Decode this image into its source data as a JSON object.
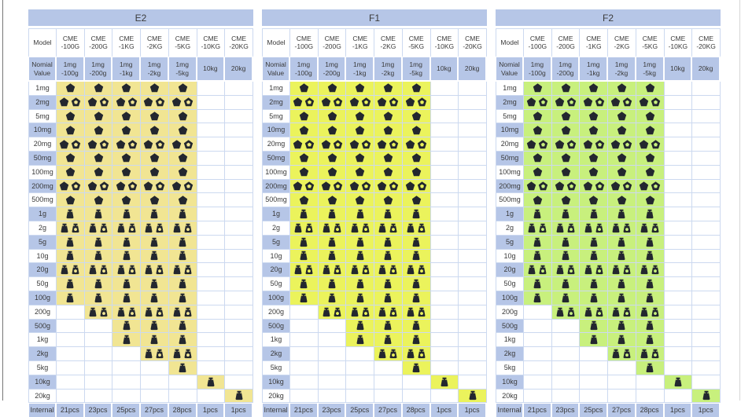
{
  "colors": {
    "header_bg": "#b6c6e7",
    "grid": "#ccd9f0",
    "text": "#3a3a3a",
    "icon": "#23272f"
  },
  "tables": [
    {
      "title": "E2",
      "highlight": "#f1e593"
    },
    {
      "title": "F1",
      "highlight": "#ebf35c"
    },
    {
      "title": "F2",
      "highlight": "#c8f07d"
    }
  ],
  "headers": {
    "model_label": "Model",
    "nominal_label_line1": "Nomial",
    "nominal_label_line2": "Value",
    "internal_label": "Internal"
  },
  "columns": [
    {
      "model": [
        "CME",
        "-100G"
      ],
      "nominal": [
        "1mg",
        "-100g"
      ],
      "internal": "21pcs"
    },
    {
      "model": [
        "CME",
        "-200G"
      ],
      "nominal": [
        "1mg",
        "-200g"
      ],
      "internal": "23pcs"
    },
    {
      "model": [
        "CME",
        "-1KG"
      ],
      "nominal": [
        "1mg",
        "-1kg"
      ],
      "internal": "25pcs"
    },
    {
      "model": [
        "CME",
        "-2KG"
      ],
      "nominal": [
        "1mg",
        "-2kg"
      ],
      "internal": "27pcs"
    },
    {
      "model": [
        "CME",
        "-5KG"
      ],
      "nominal": [
        "1mg",
        "-5kg"
      ],
      "internal": "28pcs"
    },
    {
      "model": [
        "CME",
        "-10KG"
      ],
      "nominal": [
        "10kg"
      ],
      "internal": "1pcs"
    },
    {
      "model": [
        "CME",
        "-20KG"
      ],
      "nominal": [
        "20kg"
      ],
      "internal": "1pcs"
    }
  ],
  "icon_legend": {
    "pentagon_solid": "milligram-leaf-weight",
    "pentagon_hollow": "milligram-leaf-weight-duplicate",
    "weight_solid": "knob-weight",
    "weight_hollow": "knob-weight-duplicate"
  },
  "rows": [
    {
      "label": "1mg",
      "icon": "pentagon",
      "cells": [
        1,
        1,
        1,
        1,
        1,
        0,
        0
      ]
    },
    {
      "label": "2mg",
      "icon": "pentagon",
      "cells": [
        2,
        2,
        2,
        2,
        2,
        0,
        0
      ]
    },
    {
      "label": "5mg",
      "icon": "pentagon",
      "cells": [
        1,
        1,
        1,
        1,
        1,
        0,
        0
      ]
    },
    {
      "label": "10mg",
      "icon": "pentagon",
      "cells": [
        1,
        1,
        1,
        1,
        1,
        0,
        0
      ]
    },
    {
      "label": "20mg",
      "icon": "pentagon",
      "cells": [
        2,
        2,
        2,
        2,
        2,
        0,
        0
      ]
    },
    {
      "label": "50mg",
      "icon": "pentagon",
      "cells": [
        1,
        1,
        1,
        1,
        1,
        0,
        0
      ]
    },
    {
      "label": "100mg",
      "icon": "pentagon",
      "cells": [
        1,
        1,
        1,
        1,
        1,
        0,
        0
      ]
    },
    {
      "label": "200mg",
      "icon": "pentagon",
      "cells": [
        2,
        2,
        2,
        2,
        2,
        0,
        0
      ]
    },
    {
      "label": "500mg",
      "icon": "pentagon",
      "cells": [
        1,
        1,
        1,
        1,
        1,
        0,
        0
      ]
    },
    {
      "label": "1g",
      "icon": "weight",
      "cells": [
        1,
        1,
        1,
        1,
        1,
        0,
        0
      ]
    },
    {
      "label": "2g",
      "icon": "weight",
      "cells": [
        2,
        2,
        2,
        2,
        2,
        0,
        0
      ]
    },
    {
      "label": "5g",
      "icon": "weight",
      "cells": [
        1,
        1,
        1,
        1,
        1,
        0,
        0
      ]
    },
    {
      "label": "10g",
      "icon": "weight",
      "cells": [
        1,
        1,
        1,
        1,
        1,
        0,
        0
      ]
    },
    {
      "label": "20g",
      "icon": "weight",
      "cells": [
        2,
        2,
        2,
        2,
        2,
        0,
        0
      ]
    },
    {
      "label": "50g",
      "icon": "weight",
      "cells": [
        1,
        1,
        1,
        1,
        1,
        0,
        0
      ]
    },
    {
      "label": "100g",
      "icon": "weight",
      "cells": [
        1,
        1,
        1,
        1,
        1,
        0,
        0
      ]
    },
    {
      "label": "200g",
      "icon": "weight",
      "cells": [
        0,
        2,
        2,
        2,
        2,
        0,
        0
      ]
    },
    {
      "label": "500g",
      "icon": "weight",
      "cells": [
        0,
        0,
        1,
        1,
        1,
        0,
        0
      ]
    },
    {
      "label": "1kg",
      "icon": "weight",
      "cells": [
        0,
        0,
        1,
        1,
        1,
        0,
        0
      ]
    },
    {
      "label": "2kg",
      "icon": "weight",
      "cells": [
        0,
        0,
        0,
        2,
        2,
        0,
        0
      ]
    },
    {
      "label": "5kg",
      "icon": "weight",
      "cells": [
        0,
        0,
        0,
        0,
        1,
        0,
        0
      ]
    },
    {
      "label": "10kg",
      "icon": "weight",
      "cells": [
        0,
        0,
        0,
        0,
        0,
        1,
        0
      ]
    },
    {
      "label": "20kg",
      "icon": "weight",
      "cells": [
        0,
        0,
        0,
        0,
        0,
        0,
        1
      ]
    }
  ]
}
